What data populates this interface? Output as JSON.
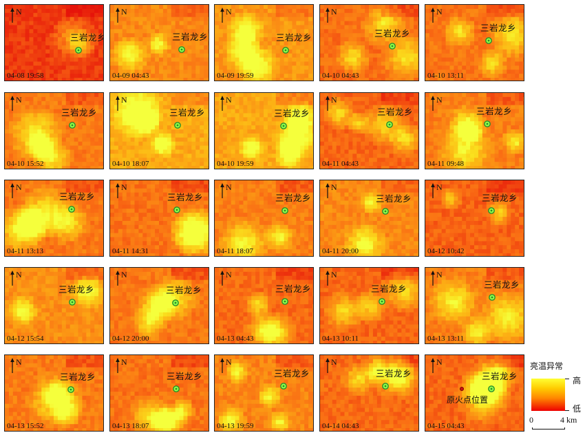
{
  "town_name": "三岩龙乡",
  "north_label": "N",
  "fire_origin_label": "原火点位置",
  "legend": {
    "title": "亮温异常",
    "high_label": "高",
    "low_label": "低",
    "scale_start": "0",
    "scale_end": "4 km",
    "colors": [
      "#ffff33",
      "#ffcc00",
      "#ff8800",
      "#ee0000"
    ]
  },
  "colors": {
    "marker_ring": "#2a8c2a",
    "marker_fill": "#8fff4a",
    "fire_point": "#c81414"
  },
  "panels": [
    {
      "timestamp": "04-08 19:58",
      "warmth": 0.18
    },
    {
      "timestamp": "04-09 04:43",
      "warmth": 0.55
    },
    {
      "timestamp": "04-09 19:59",
      "warmth": 0.62
    },
    {
      "timestamp": "04-10 04:43",
      "warmth": 0.42
    },
    {
      "timestamp": "04-10 13:11",
      "warmth": 0.45
    },
    {
      "timestamp": "04-10 15:52",
      "warmth": 0.48
    },
    {
      "timestamp": "04-10 18:07",
      "warmth": 0.72
    },
    {
      "timestamp": "04-10 19:59",
      "warmth": 0.7
    },
    {
      "timestamp": "04-11 04:43",
      "warmth": 0.38
    },
    {
      "timestamp": "04-11 09:48",
      "warmth": 0.5
    },
    {
      "timestamp": "04-11 13:13",
      "warmth": 0.46
    },
    {
      "timestamp": "04-11 14:31",
      "warmth": 0.44
    },
    {
      "timestamp": "04-11 18:07",
      "warmth": 0.5
    },
    {
      "timestamp": "04-11 20:00",
      "warmth": 0.55
    },
    {
      "timestamp": "04-12 10:42",
      "warmth": 0.36
    },
    {
      "timestamp": "04-12 15:54",
      "warmth": 0.58
    },
    {
      "timestamp": "04-12 20:00",
      "warmth": 0.46
    },
    {
      "timestamp": "04-13 04:43",
      "warmth": 0.4
    },
    {
      "timestamp": "04-13 10:11",
      "warmth": 0.38
    },
    {
      "timestamp": "04-13 13:11",
      "warmth": 0.5
    },
    {
      "timestamp": "04-13 15:52",
      "warmth": 0.48
    },
    {
      "timestamp": "04-13 18:07",
      "warmth": 0.44
    },
    {
      "timestamp": "04-13 19:59",
      "warmth": 0.52
    },
    {
      "timestamp": "04-14 04:43",
      "warmth": 0.4
    },
    {
      "timestamp": "04-15 04:43",
      "warmth": 0.38,
      "fire_origin": true
    }
  ]
}
